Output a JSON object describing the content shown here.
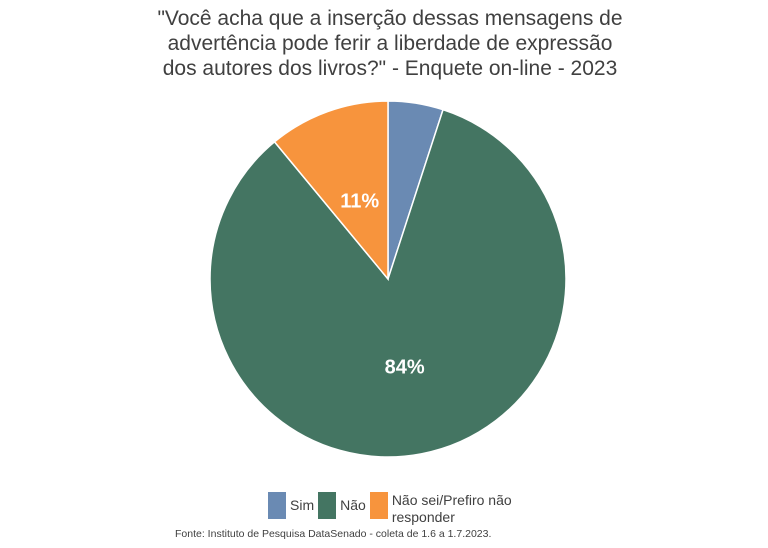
{
  "chart_data": {
    "type": "pie",
    "title_lines": [
      "\"Você acha que a inserção dessas mensagens de",
      "advertência pode ferir a liberdade de expressão",
      "dos autores dos livros?\" - Enquete on-line - 2023"
    ],
    "slices": [
      {
        "label": "Sim",
        "value": 5,
        "data_label": "",
        "color": "#6a8ab3"
      },
      {
        "label": "Não",
        "value": 84,
        "data_label": "84%",
        "color": "#447562"
      },
      {
        "label": "Não sei/Prefiro não responder",
        "value": 11,
        "data_label": "11%",
        "color": "#f7943d"
      }
    ],
    "legend_position": "bottom",
    "source": "Fonte: Instituto de Pesquisa DataSenado - coleta de 1.6 a 1.7.2023."
  }
}
